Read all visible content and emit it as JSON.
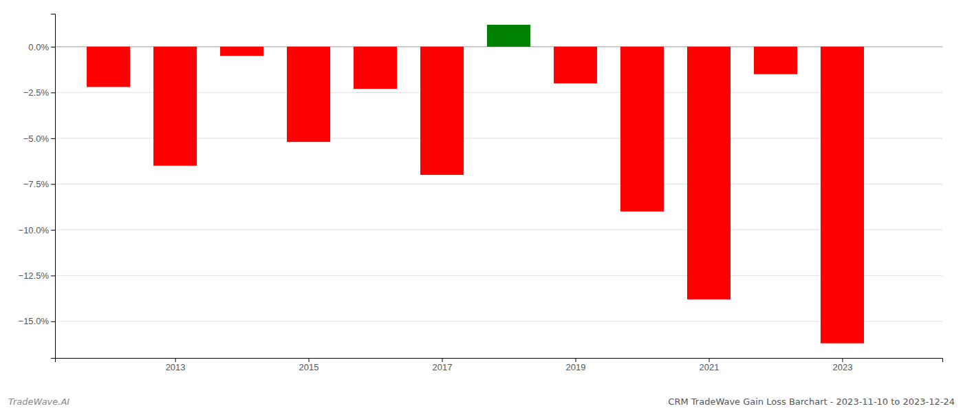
{
  "chart_data": {
    "type": "bar",
    "title": "CRM TradeWave Gain Loss Barchart - 2023-11-10 to 2023-12-24",
    "annotations": [
      "TradeWave.AI"
    ],
    "x": [
      2012,
      2013,
      2014,
      2015,
      2016,
      2017,
      2018,
      2019,
      2020,
      2021,
      2022,
      2023
    ],
    "values": [
      -2.2,
      -6.5,
      -0.5,
      -5.2,
      -2.3,
      -7.0,
      1.2,
      -2.0,
      -9.0,
      -13.8,
      -1.5,
      -16.2
    ],
    "colors": [
      "#ff0000",
      "#ff0000",
      "#ff0000",
      "#ff0000",
      "#ff0000",
      "#ff0000",
      "#008000",
      "#ff0000",
      "#ff0000",
      "#ff0000",
      "#ff0000",
      "#ff0000"
    ],
    "xlim": [
      2011.2,
      2024.5
    ],
    "xticks": [
      2013,
      2015,
      2017,
      2019,
      2021,
      2023
    ],
    "ylim": [
      -17.0,
      1.8
    ],
    "yticks": [
      {
        "value": 0.0,
        "label": "0.0%"
      },
      {
        "value": -2.5,
        "label": "−2.5%"
      },
      {
        "value": -5.0,
        "label": "−5.0%"
      },
      {
        "value": -7.5,
        "label": "−7.5%"
      },
      {
        "value": -10.0,
        "label": "−10.0%"
      },
      {
        "value": -12.5,
        "label": "−12.5%"
      },
      {
        "value": -15.0,
        "label": "−15.0%"
      }
    ],
    "grid": true
  }
}
